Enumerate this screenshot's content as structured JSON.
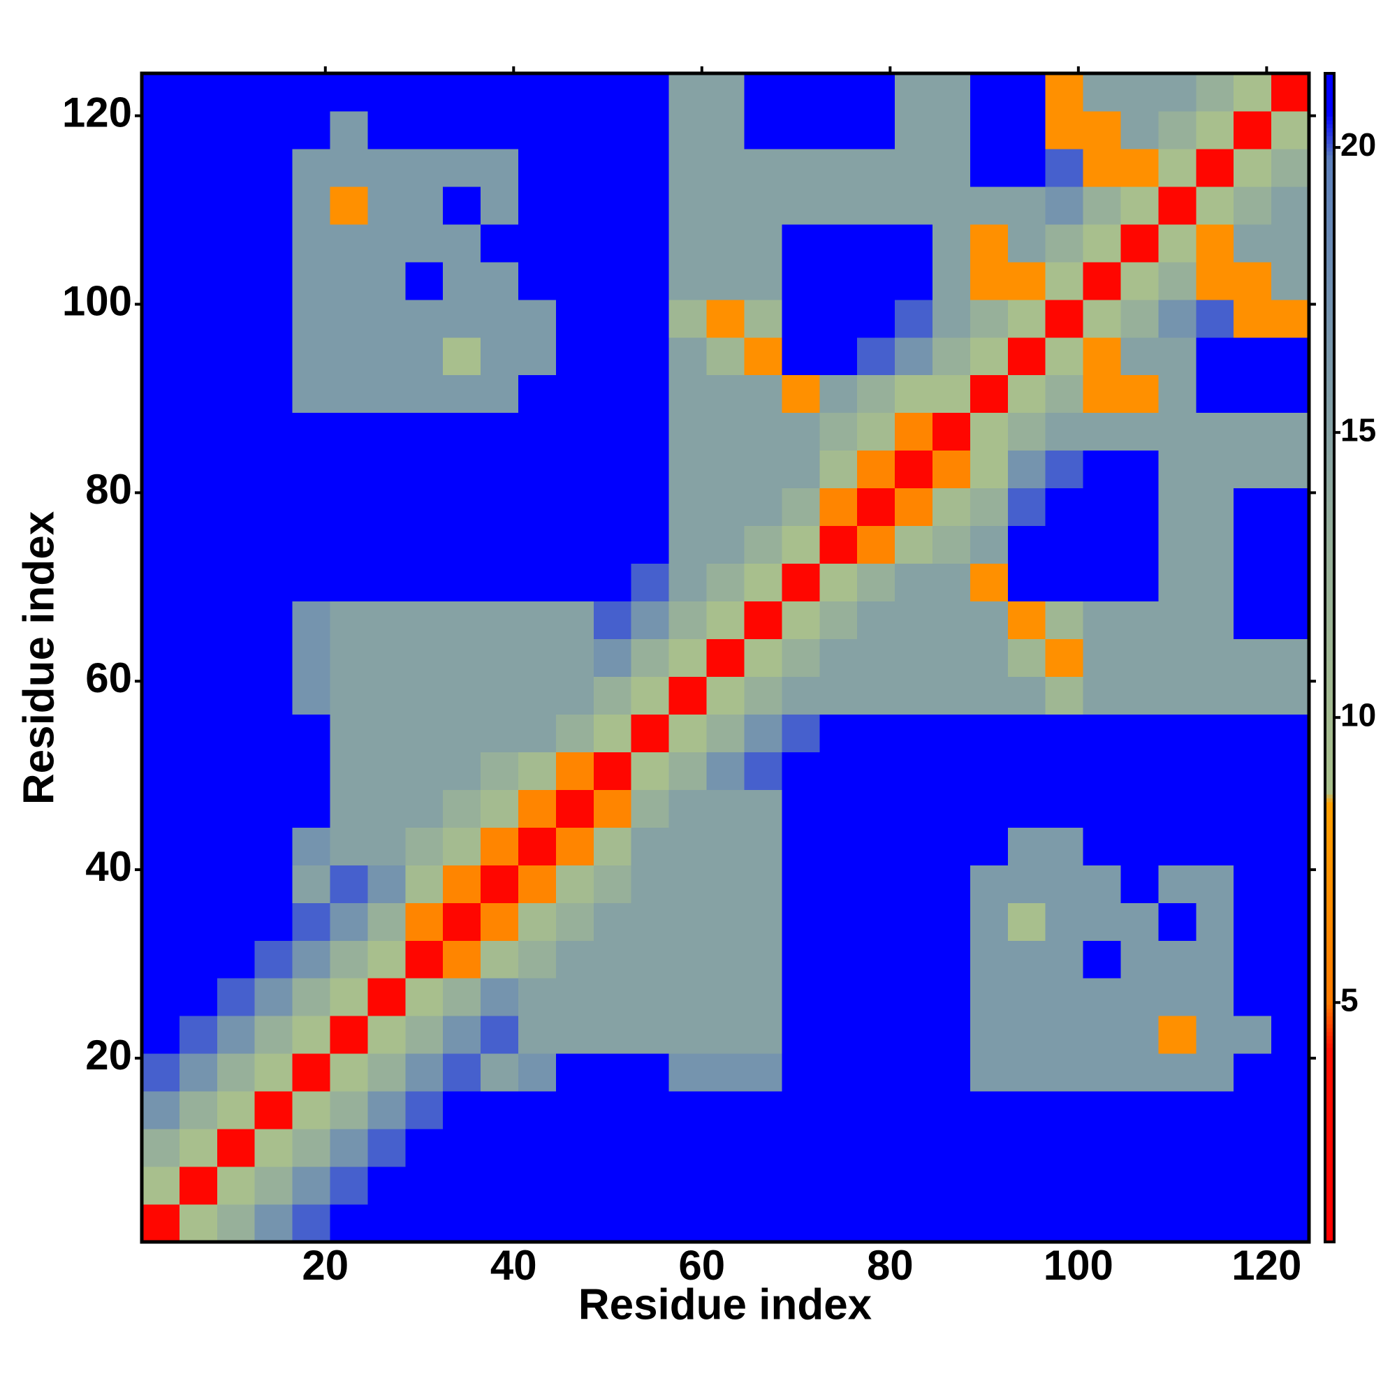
{
  "chart_data": {
    "type": "heatmap",
    "xlabel": "Residue index",
    "ylabel": "Residue index",
    "xlim": [
      0.5,
      124.5
    ],
    "ylim": [
      0.5,
      124.5
    ],
    "xticks": [
      20,
      40,
      60,
      80,
      100,
      120
    ],
    "yticks": [
      20,
      40,
      60,
      80,
      100,
      120
    ],
    "xbins": [
      0.5,
      4.5,
      8.5,
      12.5,
      16.5,
      20.5,
      24.5,
      28.5,
      32.5,
      36.5,
      40.5,
      44.5,
      48.5,
      52.5,
      56.5,
      60.5,
      64.5,
      68.5,
      72.5,
      76.5,
      80.5,
      84.5,
      88.5,
      92.5,
      96.5,
      100.5,
      104.5,
      108.5,
      112.5,
      116.5,
      120.5,
      124.5
    ],
    "ybins": [
      0.5,
      4.5,
      8.5,
      12.5,
      16.5,
      20.5,
      24.5,
      28.5,
      32.5,
      36.5,
      40.5,
      44.5,
      48.5,
      52.5,
      56.5,
      60.5,
      64.5,
      68.5,
      72.5,
      76.5,
      80.5,
      84.5,
      88.5,
      92.5,
      96.5,
      100.5,
      104.5,
      108.5,
      112.5,
      116.5,
      120.5,
      124.5
    ],
    "zlim": [
      0.8,
      21.3
    ],
    "zticks": [
      5,
      10,
      15,
      20
    ],
    "colorscale": [
      [
        0.8,
        "#ff0000"
      ],
      [
        4.2,
        "#ff1000"
      ],
      [
        5,
        "#ff7a00"
      ],
      [
        8.5,
        "#ffa000"
      ],
      [
        8.7,
        "#a9c08c"
      ],
      [
        13,
        "#97b09a"
      ],
      [
        19.8,
        "#5d80bc"
      ],
      [
        20.6,
        "#0000ff"
      ],
      [
        21.3,
        "#0000ff"
      ]
    ],
    "z": [
      [
        2,
        9,
        13,
        17,
        20,
        21,
        21,
        21,
        21,
        21,
        21,
        21,
        21,
        21,
        21,
        21,
        21,
        21,
        21,
        21,
        21,
        21,
        21,
        21,
        21,
        21,
        21,
        21,
        21,
        21,
        21
      ],
      [
        9,
        2,
        9,
        13,
        17,
        20,
        21,
        21,
        21,
        21,
        21,
        21,
        21,
        21,
        21,
        21,
        21,
        21,
        21,
        21,
        21,
        21,
        21,
        21,
        21,
        21,
        21,
        21,
        21,
        21,
        21
      ],
      [
        13,
        9,
        2,
        9,
        13,
        17,
        20,
        21,
        21,
        21,
        21,
        21,
        21,
        21,
        21,
        21,
        21,
        21,
        21,
        21,
        21,
        21,
        21,
        21,
        21,
        21,
        21,
        21,
        21,
        21,
        21
      ],
      [
        17,
        13,
        9,
        2,
        9,
        13,
        17,
        20,
        21,
        21,
        21,
        21,
        21,
        21,
        21,
        21,
        21,
        21,
        21,
        21,
        21,
        21,
        21,
        21,
        21,
        21,
        21,
        21,
        21,
        21,
        21
      ],
      [
        20,
        17,
        13,
        9,
        2,
        9,
        13,
        17,
        20,
        15,
        17,
        21,
        21,
        21,
        17,
        17,
        17,
        21,
        21,
        21,
        21,
        21,
        16,
        16,
        16,
        16,
        16,
        16,
        16,
        21,
        21
      ],
      [
        21,
        20,
        17,
        13,
        9,
        2,
        9,
        13,
        17,
        20,
        15,
        15,
        15,
        15,
        15,
        15,
        15,
        21,
        21,
        21,
        21,
        21,
        16,
        16,
        16,
        16,
        16,
        7,
        16,
        16,
        21
      ],
      [
        21,
        21,
        20,
        17,
        13,
        9,
        2,
        9,
        13,
        17,
        15,
        15,
        15,
        15,
        15,
        15,
        15,
        21,
        21,
        21,
        21,
        21,
        16,
        16,
        16,
        16,
        16,
        16,
        16,
        21,
        21
      ],
      [
        21,
        21,
        21,
        20,
        17,
        13,
        9,
        2,
        6,
        10,
        13,
        15,
        15,
        15,
        15,
        15,
        15,
        21,
        21,
        21,
        21,
        21,
        16,
        16,
        16,
        21,
        16,
        16,
        16,
        21,
        21
      ],
      [
        21,
        21,
        21,
        21,
        20,
        17,
        13,
        6,
        2,
        6,
        10,
        13,
        15,
        15,
        15,
        15,
        15,
        21,
        21,
        21,
        21,
        21,
        16,
        9,
        16,
        16,
        16,
        21,
        16,
        21,
        21
      ],
      [
        21,
        21,
        21,
        21,
        15,
        20,
        17,
        10,
        6,
        2,
        6,
        10,
        13,
        15,
        15,
        15,
        15,
        21,
        21,
        21,
        21,
        21,
        16,
        16,
        16,
        16,
        21,
        16,
        16,
        21,
        21
      ],
      [
        21,
        21,
        21,
        21,
        17,
        15,
        15,
        13,
        10,
        6,
        2,
        6,
        10,
        15,
        15,
        15,
        15,
        21,
        21,
        21,
        21,
        21,
        21,
        16,
        16,
        21,
        21,
        21,
        21,
        21,
        21
      ],
      [
        21,
        21,
        21,
        21,
        21,
        15,
        15,
        15,
        13,
        10,
        6,
        2,
        6,
        13,
        15,
        15,
        15,
        21,
        21,
        21,
        21,
        21,
        21,
        21,
        21,
        21,
        21,
        21,
        21,
        21,
        21
      ],
      [
        21,
        21,
        21,
        21,
        21,
        15,
        15,
        15,
        15,
        13,
        10,
        6,
        2,
        9,
        13,
        17,
        20,
        21,
        21,
        21,
        21,
        21,
        21,
        21,
        21,
        21,
        21,
        21,
        21,
        21,
        21
      ],
      [
        21,
        21,
        21,
        21,
        21,
        15,
        15,
        15,
        15,
        15,
        15,
        13,
        9,
        2,
        9,
        13,
        17,
        20,
        21,
        21,
        21,
        21,
        21,
        21,
        21,
        21,
        21,
        21,
        21,
        21,
        21
      ],
      [
        21,
        21,
        21,
        21,
        17,
        15,
        15,
        15,
        15,
        15,
        15,
        15,
        13,
        9,
        2,
        9,
        13,
        15,
        15,
        15,
        15,
        15,
        15,
        15,
        11,
        15,
        15,
        15,
        15,
        15,
        15
      ],
      [
        21,
        21,
        21,
        21,
        17,
        15,
        15,
        15,
        15,
        15,
        15,
        15,
        17,
        13,
        9,
        2,
        9,
        13,
        15,
        15,
        15,
        15,
        15,
        11,
        7,
        15,
        15,
        15,
        15,
        15,
        15
      ],
      [
        21,
        21,
        21,
        21,
        17,
        15,
        15,
        15,
        15,
        15,
        15,
        15,
        20,
        17,
        13,
        9,
        2,
        9,
        13,
        15,
        15,
        15,
        15,
        7,
        11,
        15,
        15,
        15,
        15,
        21,
        21
      ],
      [
        21,
        21,
        21,
        21,
        21,
        21,
        21,
        21,
        21,
        21,
        21,
        21,
        21,
        20,
        15,
        13,
        9,
        2,
        9,
        13,
        15,
        15,
        7,
        21,
        21,
        21,
        21,
        15,
        15,
        21,
        21
      ],
      [
        21,
        21,
        21,
        21,
        21,
        21,
        21,
        21,
        21,
        21,
        21,
        21,
        21,
        21,
        15,
        15,
        13,
        9,
        2,
        6,
        10,
        13,
        15,
        21,
        21,
        21,
        21,
        15,
        15,
        21,
        21
      ],
      [
        21,
        21,
        21,
        21,
        21,
        21,
        21,
        21,
        21,
        21,
        21,
        21,
        21,
        21,
        15,
        15,
        15,
        13,
        6,
        2,
        6,
        10,
        13,
        20,
        21,
        21,
        21,
        15,
        15,
        21,
        21
      ],
      [
        21,
        21,
        21,
        21,
        21,
        21,
        21,
        21,
        21,
        21,
        21,
        21,
        21,
        21,
        15,
        15,
        15,
        15,
        10,
        6,
        2,
        6,
        9,
        17,
        20,
        21,
        21,
        15,
        15,
        15,
        15
      ],
      [
        21,
        21,
        21,
        21,
        21,
        21,
        21,
        21,
        21,
        21,
        21,
        21,
        21,
        21,
        15,
        15,
        15,
        15,
        13,
        10,
        6,
        2,
        9,
        13,
        15,
        15,
        15,
        15,
        15,
        15,
        15
      ],
      [
        21,
        21,
        21,
        21,
        16,
        16,
        16,
        16,
        16,
        16,
        21,
        21,
        21,
        21,
        15,
        15,
        15,
        7,
        15,
        13,
        9,
        9,
        2,
        9,
        13,
        7,
        7,
        15,
        21,
        21,
        21
      ],
      [
        21,
        21,
        21,
        21,
        16,
        16,
        16,
        16,
        9,
        16,
        16,
        21,
        21,
        21,
        15,
        11,
        7,
        21,
        21,
        20,
        17,
        13,
        9,
        2,
        9,
        7,
        15,
        15,
        21,
        21,
        21
      ],
      [
        21,
        21,
        21,
        21,
        16,
        16,
        16,
        16,
        16,
        16,
        16,
        21,
        21,
        21,
        11,
        7,
        11,
        21,
        21,
        21,
        20,
        15,
        13,
        9,
        2,
        9,
        13,
        17,
        20,
        7,
        7
      ],
      [
        21,
        21,
        21,
        21,
        16,
        16,
        16,
        21,
        16,
        16,
        21,
        21,
        21,
        21,
        15,
        15,
        15,
        21,
        21,
        21,
        21,
        15,
        7,
        7,
        9,
        2,
        9,
        13,
        7,
        7,
        15
      ],
      [
        21,
        21,
        21,
        21,
        16,
        16,
        16,
        16,
        16,
        21,
        21,
        21,
        21,
        21,
        15,
        15,
        15,
        21,
        21,
        21,
        21,
        15,
        7,
        15,
        13,
        9,
        2,
        9,
        7,
        15,
        15
      ],
      [
        21,
        21,
        21,
        21,
        16,
        7,
        16,
        16,
        21,
        16,
        21,
        21,
        21,
        21,
        15,
        15,
        15,
        15,
        15,
        15,
        15,
        15,
        15,
        15,
        17,
        13,
        9,
        2,
        9,
        13,
        15
      ],
      [
        21,
        21,
        21,
        21,
        16,
        16,
        16,
        16,
        16,
        16,
        21,
        21,
        21,
        21,
        15,
        15,
        15,
        15,
        15,
        15,
        15,
        15,
        21,
        21,
        20,
        7,
        7,
        9,
        2,
        9,
        13
      ],
      [
        21,
        21,
        21,
        21,
        21,
        16,
        21,
        21,
        21,
        21,
        21,
        21,
        21,
        21,
        15,
        15,
        21,
        21,
        21,
        21,
        15,
        15,
        21,
        21,
        7,
        7,
        15,
        13,
        9,
        2,
        9
      ],
      [
        21,
        21,
        21,
        21,
        21,
        21,
        21,
        21,
        21,
        21,
        21,
        21,
        21,
        21,
        15,
        15,
        21,
        21,
        21,
        21,
        15,
        15,
        21,
        21,
        7,
        15,
        15,
        15,
        13,
        9,
        2
      ]
    ]
  }
}
